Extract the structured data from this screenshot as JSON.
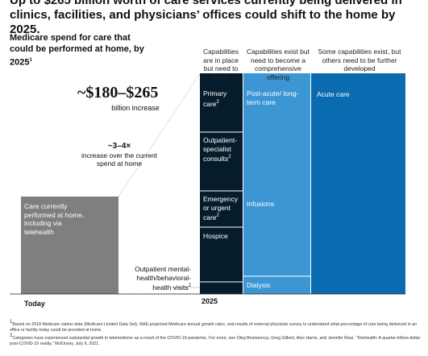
{
  "headline": "Up to $265 billion worth of care services currently being delivered in clinics, facilities, and physicians’ offices could shift to the home by 2025.",
  "subhead": "Medicare spend for care that could be performed at home, by 2025",
  "subhead_sup": "1",
  "big_range": "~$180–$265",
  "big_range_sub": "billion increase",
  "multiplier": "~3–4×",
  "multiplier_sub": "increase over the current spend at home",
  "columns": {
    "col1": "Capabilities are in place but need to scale",
    "col2": "Capabilities exist but need to become a comprehensive offering",
    "col3": "Some capabilities exist, but others need to be further developed"
  },
  "today_bar_label": "Care currently performed at home, including via telehealth",
  "segments": {
    "primary_care": "Primary care",
    "primary_care_sup": "2",
    "outpatient_specialist": "Outpatient-specialist consults",
    "outpatient_specialist_sup": "2",
    "emergency": "Emergency or urgent care",
    "emergency_sup": "2",
    "hospice": "Hospice",
    "post_acute": "Post-acute/ long-term care",
    "infusions": "Infusions",
    "dialysis": "Dialysis",
    "acute_care": "Acute care",
    "outpatient_mental": "Outpatient mental-health/behavioral-health visits",
    "outpatient_mental_sup": "2"
  },
  "axis": {
    "today": "Today",
    "year2025": "2025"
  },
  "footnotes": {
    "f1": "Based on 2018 Medicare claims data (Medicare Limited Data Set), NHE-projected Medicare annual growth rates, and results of external physician survey to understand what percentage of care being delivered in an office or facility today could be provided at home.",
    "f1_num": "1",
    "f2": "Categories have experienced substantial growth in telemedicine as a result of the COVID-19 pandemic. For more, see Oleg Bestsennyy, Greg Gilbert, Alex Harris, and Jennifer Rost, “Telehealth: A quarter-trillion-dollar post-COVID-19 reality,” McKinsey, July 9, 2021.",
    "f2_num": "2"
  },
  "colors": {
    "today_bar": "#7f7f7f",
    "dark_navy": "#051c2c",
    "mid_blue": "#3c96d3",
    "deep_blue": "#0b6bb0",
    "separator": "#ffffff"
  },
  "chart_data": {
    "type": "bar",
    "categories": [
      "Today",
      "2025"
    ],
    "groups": [
      "Capabilities are in place but need to scale",
      "Capabilities exist but need to become a comprehensive offering",
      "Some capabilities exist, but others need to be further developed"
    ],
    "segments_2025": [
      {
        "name": "Primary care",
        "group": 1
      },
      {
        "name": "Outpatient-specialist consults",
        "group": 1
      },
      {
        "name": "Emergency or urgent care",
        "group": 1
      },
      {
        "name": "Hospice",
        "group": 1
      },
      {
        "name": "Outpatient mental-health/behavioral-health visits",
        "group": 1
      },
      {
        "name": "Post-acute/ long-term care",
        "group": 2
      },
      {
        "name": "Infusions",
        "group": 2
      },
      {
        "name": "Dialysis",
        "group": 2
      },
      {
        "name": "Acute care",
        "group": 3
      }
    ],
    "today": "Care currently performed at home, including via telehealth",
    "increase_range_billion": [
      180,
      265
    ],
    "multiplier_range": [
      3,
      4
    ]
  }
}
